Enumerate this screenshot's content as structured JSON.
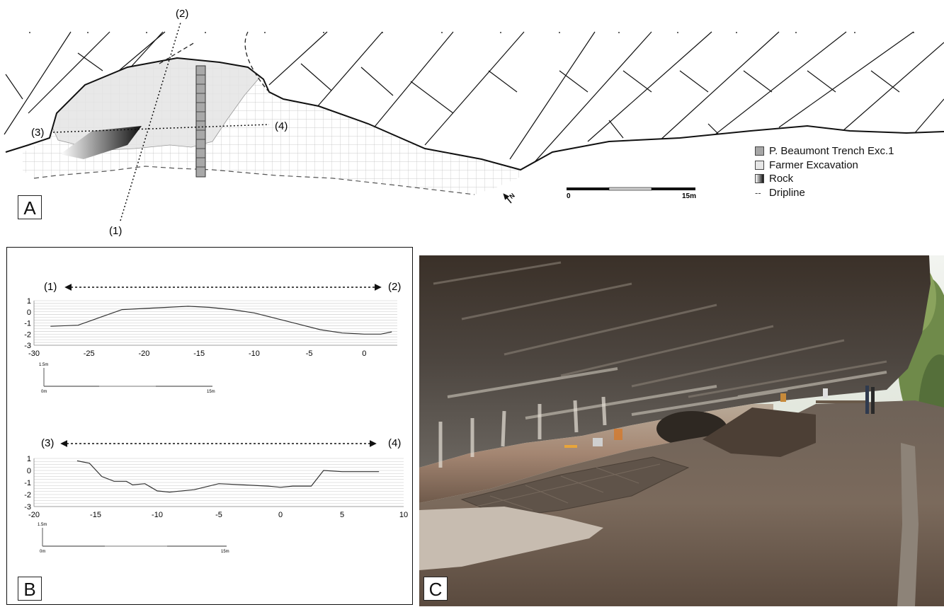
{
  "panel_a": {
    "label": "A",
    "section_markers": {
      "m1": "(1)",
      "m2": "(2)",
      "m3": "(3)",
      "m4": "(4)"
    },
    "legend": [
      {
        "key": "trench",
        "label": "P. Beaumont Trench Exc.1"
      },
      {
        "key": "farmer",
        "label": "Farmer Excavation"
      },
      {
        "key": "rock",
        "label": "Rock"
      },
      {
        "key": "dripline",
        "label": "Dripline"
      }
    ],
    "scale": {
      "start": "0",
      "end": "15m"
    },
    "north": "N"
  },
  "panel_b": {
    "label": "B",
    "profile_top": {
      "from": "(1)",
      "to": "(2)",
      "x_ticks": [
        "-30",
        "-25",
        "-20",
        "-15",
        "-10",
        "-5",
        "0"
      ],
      "y_ticks": [
        "1",
        "0",
        "-1",
        "-2",
        "-3"
      ],
      "scale_vertical": "1.5m",
      "scale_start": "0m",
      "scale_end": "15m",
      "profile": [
        [
          -28.5,
          -1.3
        ],
        [
          -26,
          -1.2
        ],
        [
          -24,
          -0.5
        ],
        [
          -22,
          0.2
        ],
        [
          -20,
          0.3
        ],
        [
          -18,
          0.4
        ],
        [
          -16,
          0.5
        ],
        [
          -14,
          0.4
        ],
        [
          -12,
          0.2
        ],
        [
          -10,
          -0.1
        ],
        [
          -8,
          -0.6
        ],
        [
          -6,
          -1.1
        ],
        [
          -4,
          -1.6
        ],
        [
          -2,
          -1.9
        ],
        [
          0,
          -2.0
        ],
        [
          1.5,
          -2.0
        ],
        [
          2.5,
          -1.8
        ]
      ]
    },
    "profile_bottom": {
      "from": "(3)",
      "to": "(4)",
      "x_ticks": [
        "-20",
        "-15",
        "-10",
        "-5",
        "0",
        "5",
        "10"
      ],
      "y_ticks": [
        "1",
        "0",
        "-1",
        "-2",
        "-3"
      ],
      "scale_vertical": "1.5m",
      "scale_start": "0m",
      "scale_end": "15m",
      "profile": [
        [
          -16.5,
          0.8
        ],
        [
          -15.5,
          0.6
        ],
        [
          -14.5,
          -0.5
        ],
        [
          -13.5,
          -0.9
        ],
        [
          -12.5,
          -0.9
        ],
        [
          -12,
          -1.2
        ],
        [
          -11,
          -1.1
        ],
        [
          -10.5,
          -1.4
        ],
        [
          -10,
          -1.7
        ],
        [
          -9,
          -1.8
        ],
        [
          -7,
          -1.6
        ],
        [
          -5,
          -1.1
        ],
        [
          -3,
          -1.2
        ],
        [
          -1,
          -1.3
        ],
        [
          0,
          -1.4
        ],
        [
          1,
          -1.3
        ],
        [
          2.5,
          -1.3
        ],
        [
          3.5,
          0.0
        ],
        [
          5,
          -0.1
        ],
        [
          8,
          -0.1
        ]
      ]
    }
  },
  "panel_c": {
    "label": "C"
  }
}
